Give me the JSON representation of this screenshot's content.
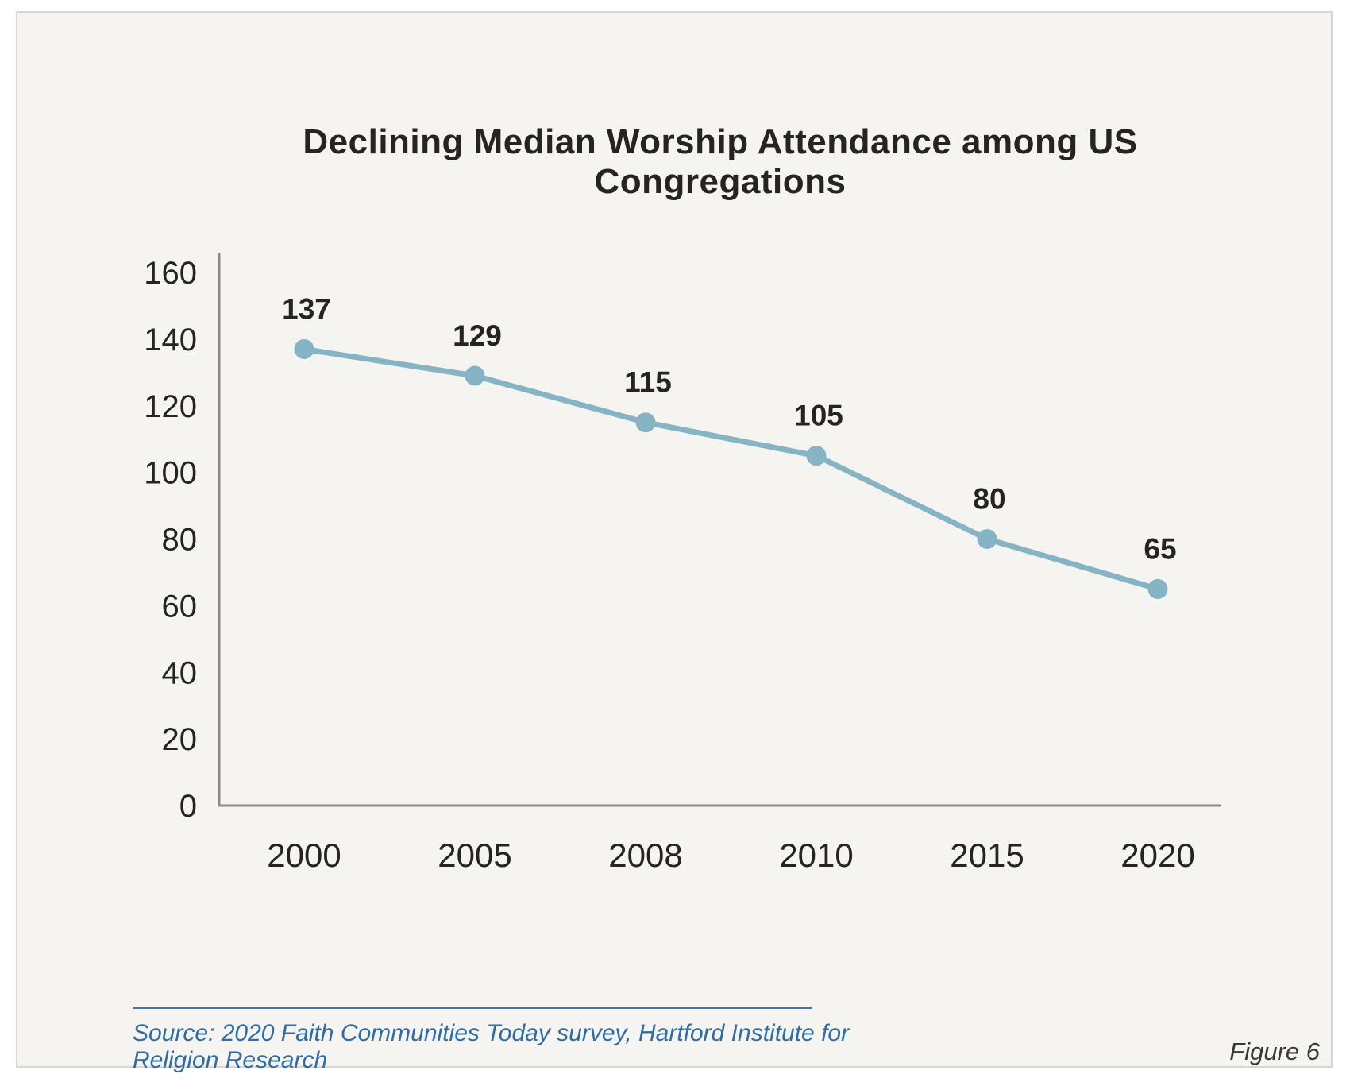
{
  "card": {
    "background": "#f5f4f1",
    "border_color": "#d8d6d3"
  },
  "chart_data": {
    "type": "line",
    "title": "Declining Median Worship Attendance among US Congregations",
    "categories": [
      "2000",
      "2005",
      "2008",
      "2010",
      "2015",
      "2020"
    ],
    "values": [
      137,
      129,
      115,
      105,
      80,
      65
    ],
    "xlabel": "",
    "ylabel": "",
    "ylim": [
      0,
      160
    ],
    "yticks": [
      0,
      20,
      40,
      60,
      80,
      100,
      120,
      140,
      160
    ],
    "grid": false,
    "legend": false,
    "data_labels_shown": true,
    "line_color": "#86b4c5",
    "marker_color": "#86b4c5",
    "axis_color": "#8a8a8a",
    "text_color": "#272321"
  },
  "footer": {
    "source_text": "Source: 2020 Faith Communities Today survey, Hartford Institute for Religion Research",
    "source_color": "#2d6da3",
    "figure_label": "Figure 6"
  }
}
